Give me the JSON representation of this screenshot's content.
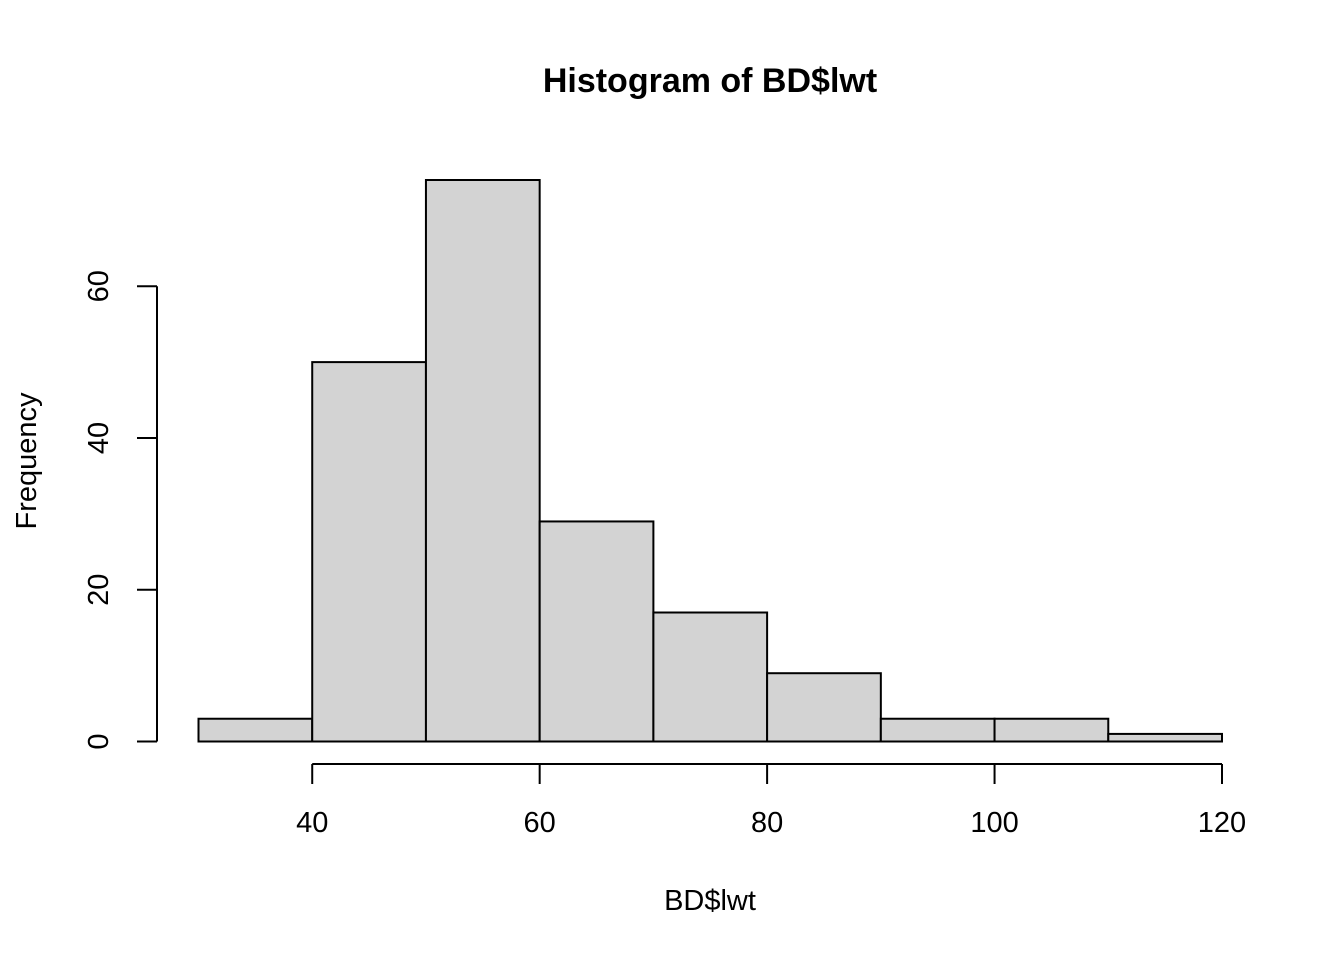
{
  "chart_data": {
    "type": "bar",
    "subtype": "histogram",
    "title": "Histogram of BD$lwt",
    "xlabel": "BD$lwt",
    "ylabel": "Frequency",
    "bins": [
      {
        "start": 30,
        "end": 40,
        "count": 3
      },
      {
        "start": 40,
        "end": 50,
        "count": 50
      },
      {
        "start": 50,
        "end": 60,
        "count": 74
      },
      {
        "start": 60,
        "end": 70,
        "count": 29
      },
      {
        "start": 70,
        "end": 80,
        "count": 17
      },
      {
        "start": 80,
        "end": 90,
        "count": 9
      },
      {
        "start": 90,
        "end": 100,
        "count": 3
      },
      {
        "start": 100,
        "end": 110,
        "count": 3
      },
      {
        "start": 110,
        "end": 120,
        "count": 1
      }
    ],
    "x_ticks": [
      "40",
      "60",
      "80",
      "100",
      "120"
    ],
    "y_ticks": [
      "0",
      "20",
      "40",
      "60"
    ],
    "xlim": [
      30,
      120
    ],
    "ylim": [
      0,
      74
    ],
    "bar_color": "#d3d3d3",
    "border_color": "#000000",
    "grid": false,
    "legend": "none"
  }
}
